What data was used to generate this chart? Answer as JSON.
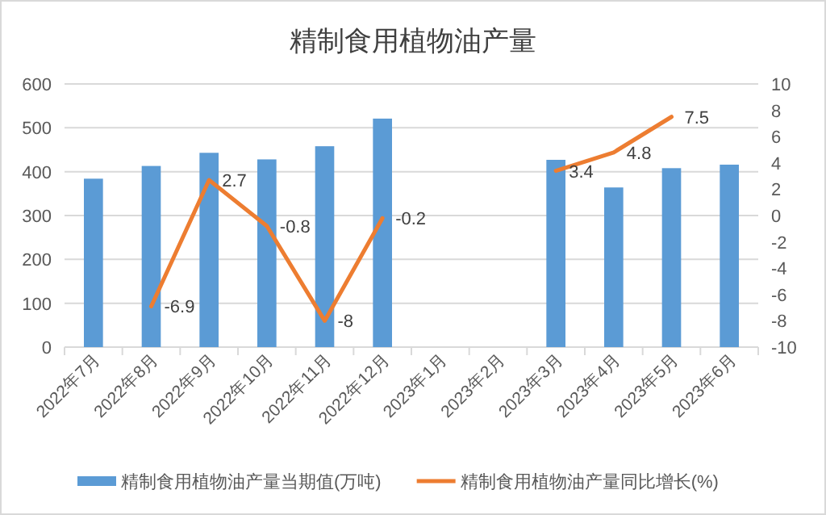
{
  "chart_data": {
    "type": "bar",
    "title": "精制食用植物油产量",
    "categories": [
      "2022年7月",
      "2022年8月",
      "2022年9月",
      "2022年10月",
      "2022年11月",
      "2022年12月",
      "2023年1月",
      "2023年2月",
      "2023年3月",
      "2023年4月",
      "2023年5月",
      "2023年6月"
    ],
    "series": [
      {
        "name": "精制食用植物油产量当期值(万吨)",
        "color": "#5b9bd5",
        "values": [
          384,
          413,
          443,
          428,
          458,
          521,
          null,
          null,
          427,
          364,
          408,
          416
        ]
      },
      {
        "name": "精制食用植物油产量同比增长(%)",
        "type": "line",
        "axis": "y2",
        "color": "#ed7d31",
        "data_labels": true,
        "values": [
          null,
          -6.9,
          2.7,
          -0.8,
          -8,
          -0.2,
          null,
          null,
          3.4,
          4.8,
          7.5,
          null
        ]
      }
    ],
    "ylim": [
      0,
      600
    ],
    "yticks": [
      0,
      100,
      200,
      300,
      400,
      500,
      600
    ],
    "y2lim": [
      -10,
      10
    ],
    "y2ticks": [
      -10,
      -8,
      -6,
      -4,
      -2,
      0,
      2,
      4,
      6,
      8,
      10
    ],
    "grid": "y",
    "legend": "bottom"
  }
}
